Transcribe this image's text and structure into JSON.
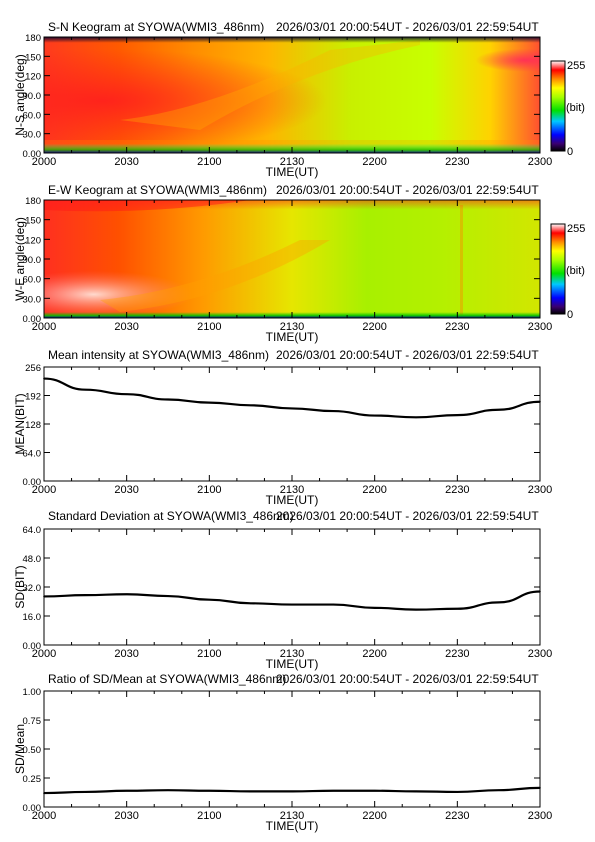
{
  "time_axis": {
    "ticks": [
      "2000",
      "2030",
      "2100",
      "2130",
      "2200",
      "2230",
      "2300"
    ],
    "xlabel": "TIME(UT)",
    "range_minutes": [
      0,
      180
    ]
  },
  "colorbar": {
    "max_label": "255",
    "unit_label": "(bit)",
    "min_label": "0"
  },
  "chart_data": [
    {
      "type": "heatmap",
      "title": "S-N Keogram at SYOWA(WMI3_486nm)",
      "subtitle": "2026/03/01 20:00:54UT - 2026/03/01 22:59:54UT",
      "xlabel": "TIME(UT)",
      "ylabel": "N-S angle(deg)",
      "ylim": [
        0,
        180
      ],
      "yticks": [
        "0.00",
        "30.0",
        "60.0",
        "90.0",
        "120",
        "150",
        "180"
      ],
      "xticks": [
        "2000",
        "2030",
        "2100",
        "2130",
        "2200",
        "2230",
        "2300"
      ],
      "zlim": [
        0,
        255
      ],
      "colormap": "rainbow",
      "dominant_level_by_time": [
        {
          "time": "2000",
          "level": 215
        },
        {
          "time": "2030",
          "level": 205
        },
        {
          "time": "2100",
          "level": 185
        },
        {
          "time": "2130",
          "level": 160
        },
        {
          "time": "2200",
          "level": 140
        },
        {
          "time": "2230",
          "level": 150
        },
        {
          "time": "2300",
          "level": 190
        }
      ]
    },
    {
      "type": "heatmap",
      "title": "E-W Keogram at SYOWA(WMI3_486nm)",
      "subtitle": "2026/03/01 20:00:54UT - 2026/03/01 22:59:54UT",
      "xlabel": "TIME(UT)",
      "ylabel": "W-E angle(deg)",
      "ylim": [
        0,
        180
      ],
      "yticks": [
        "0.00",
        "30.0",
        "60.0",
        "90.0",
        "120",
        "150",
        "180"
      ],
      "xticks": [
        "2000",
        "2030",
        "2100",
        "2130",
        "2200",
        "2230",
        "2300"
      ],
      "zlim": [
        0,
        255
      ],
      "colormap": "rainbow",
      "dominant_level_by_time": [
        {
          "time": "2000",
          "level": 225
        },
        {
          "time": "2030",
          "level": 210
        },
        {
          "time": "2100",
          "level": 185
        },
        {
          "time": "2130",
          "level": 160
        },
        {
          "time": "2200",
          "level": 140
        },
        {
          "time": "2230",
          "level": 140
        },
        {
          "time": "2300",
          "level": 150
        }
      ]
    },
    {
      "type": "line",
      "title": "Mean intensity at SYOWA(WMI3_486nm)",
      "subtitle": "2026/03/01 20:00:54UT - 2026/03/01 22:59:54UT",
      "xlabel": "TIME(UT)",
      "ylabel": "MEAN(BIT)",
      "ylim": [
        0,
        256
      ],
      "yticks": [
        "0.00",
        "64.0",
        "128",
        "192",
        "256"
      ],
      "xticks": [
        "2000",
        "2030",
        "2100",
        "2130",
        "2200",
        "2230",
        "2300"
      ],
      "x": [
        "2000",
        "2015",
        "2030",
        "2045",
        "2100",
        "2115",
        "2130",
        "2145",
        "2200",
        "2215",
        "2230",
        "2245",
        "2300"
      ],
      "values": [
        230,
        205,
        195,
        183,
        176,
        170,
        163,
        157,
        147,
        143,
        148,
        160,
        178
      ]
    },
    {
      "type": "line",
      "title": "Standard Deviation at SYOWA(WMI3_486nm)",
      "subtitle": "2026/03/01 20:00:54UT - 2026/03/01 22:59:54UT",
      "xlabel": "TIME(UT)",
      "ylabel": "SD(BIT)",
      "ylim": [
        0,
        64
      ],
      "yticks": [
        "0.00",
        "16.0",
        "32.0",
        "48.0",
        "64.0"
      ],
      "xticks": [
        "2000",
        "2030",
        "2100",
        "2130",
        "2200",
        "2230",
        "2300"
      ],
      "x": [
        "2000",
        "2015",
        "2030",
        "2045",
        "2100",
        "2115",
        "2130",
        "2145",
        "2200",
        "2215",
        "2230",
        "2245",
        "2300"
      ],
      "values": [
        26.8,
        27.5,
        28.0,
        27.0,
        25.0,
        23.0,
        22.3,
        22.3,
        20.5,
        19.5,
        20.0,
        23.5,
        29.5
      ]
    },
    {
      "type": "line",
      "title": "Ratio of SD/Mean at SYOWA(WMI3_486nm)",
      "subtitle": "2026/03/01 20:00:54UT - 2026/03/01 22:59:54UT",
      "xlabel": "TIME(UT)",
      "ylabel": "SD/Mean",
      "ylim": [
        0,
        1
      ],
      "yticks": [
        "0.00",
        "0.25",
        "0.50",
        "0.75",
        "1.00"
      ],
      "xticks": [
        "2000",
        "2030",
        "2100",
        "2130",
        "2200",
        "2230",
        "2300"
      ],
      "x": [
        "2000",
        "2015",
        "2030",
        "2045",
        "2100",
        "2115",
        "2130",
        "2145",
        "2200",
        "2215",
        "2230",
        "2245",
        "2300"
      ],
      "values": [
        0.12,
        0.13,
        0.14,
        0.145,
        0.14,
        0.135,
        0.135,
        0.14,
        0.14,
        0.135,
        0.13,
        0.145,
        0.165
      ]
    }
  ]
}
